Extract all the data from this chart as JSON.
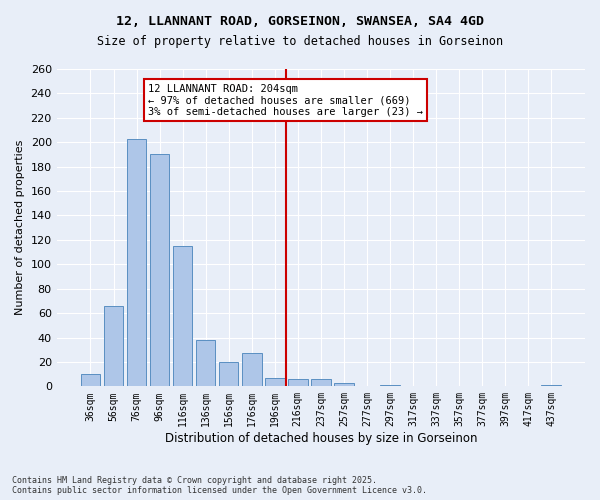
{
  "title_line1": "12, LLANNANT ROAD, GORSEINON, SWANSEA, SA4 4GD",
  "title_line2": "Size of property relative to detached houses in Gorseinon",
  "xlabel": "Distribution of detached houses by size in Gorseinon",
  "ylabel": "Number of detached properties",
  "footnote": "Contains HM Land Registry data © Crown copyright and database right 2025.\nContains public sector information licensed under the Open Government Licence v3.0.",
  "bar_labels": [
    "36sqm",
    "56sqm",
    "76sqm",
    "96sqm",
    "116sqm",
    "136sqm",
    "156sqm",
    "176sqm",
    "196sqm",
    "216sqm",
    "237sqm",
    "257sqm",
    "277sqm",
    "297sqm",
    "317sqm",
    "337sqm",
    "357sqm",
    "377sqm",
    "397sqm",
    "417sqm",
    "437sqm"
  ],
  "bar_values": [
    10,
    66,
    203,
    190,
    115,
    38,
    20,
    27,
    7,
    6,
    6,
    3,
    0,
    1,
    0,
    0,
    0,
    0,
    0,
    0,
    1
  ],
  "bar_color": "#aec6e8",
  "bar_edge_color": "#5a8fc2",
  "bg_color": "#e8eef8",
  "grid_color": "#ffffff",
  "vline_x": 8.5,
  "vline_color": "#cc0000",
  "annotation_text": "12 LLANNANT ROAD: 204sqm\n← 97% of detached houses are smaller (669)\n3% of semi-detached houses are larger (23) →",
  "annotation_box_color": "#cc0000",
  "annotation_bg": "#ffffff",
  "ylim": [
    0,
    260
  ],
  "yticks": [
    0,
    20,
    40,
    60,
    80,
    100,
    120,
    140,
    160,
    180,
    200,
    220,
    240,
    260
  ]
}
